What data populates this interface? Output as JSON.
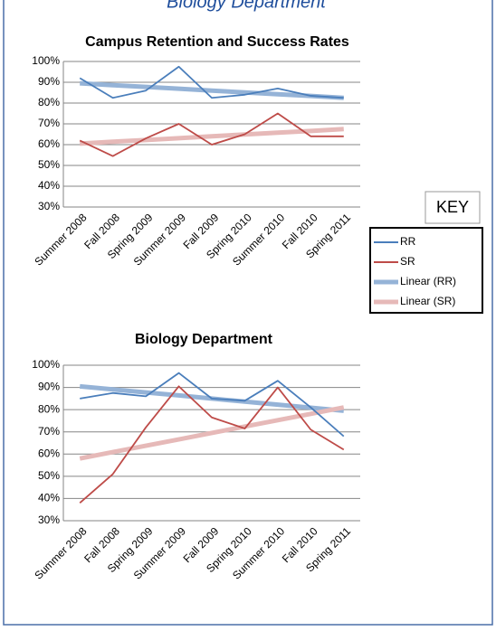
{
  "page_title": "Biology Department",
  "key": {
    "title": "KEY"
  },
  "chart_data": [
    {
      "type": "line",
      "title": "Campus Retention and Success Rates",
      "categories": [
        "Summer 2008",
        "Fall 2008",
        "Spring 2009",
        "Summer 2009",
        "Fall 2009",
        "Spring 2010",
        "Summer 2010",
        "Fall 2010",
        "Spring 2011"
      ],
      "ylim": [
        30,
        100
      ],
      "yticks": [
        {
          "value": 30,
          "label": "30%"
        },
        {
          "value": 40,
          "label": "40%"
        },
        {
          "value": 50,
          "label": "50%"
        },
        {
          "value": 60,
          "label": "60%"
        },
        {
          "value": 70,
          "label": "70%"
        },
        {
          "value": 80,
          "label": "80%"
        },
        {
          "value": 90,
          "label": "90%"
        },
        {
          "value": 100,
          "label": "100%"
        }
      ],
      "grid": true,
      "series": [
        {
          "name": "RR",
          "color": "#4a7ebb",
          "values": [
            92,
            82.5,
            86,
            97.5,
            82.5,
            84,
            87,
            83.5,
            82.5
          ]
        },
        {
          "name": "SR",
          "color": "#be4b48",
          "values": [
            62,
            54.5,
            63,
            70,
            60,
            65,
            75,
            64,
            64
          ]
        },
        {
          "name": "Linear (RR)",
          "color": "#95b3d7",
          "trendline": true,
          "values": [
            89.5,
            88.6,
            87.75,
            86.9,
            86,
            85.1,
            84.25,
            83.4,
            82.5
          ]
        },
        {
          "name": "Linear (SR)",
          "color": "#e6b9b8",
          "trendline": true,
          "values": [
            60.5,
            61.4,
            62.25,
            63.1,
            64,
            64.9,
            65.75,
            66.6,
            67.5
          ]
        }
      ]
    },
    {
      "type": "line",
      "title": "Biology Department",
      "categories": [
        "Summer 2008",
        "Fall 2008",
        "Spring 2009",
        "Summer 2009",
        "Fall 2009",
        "Spring 2010",
        "Summer 2010",
        "Fall 2010",
        "Spring 2011"
      ],
      "ylim": [
        30,
        100
      ],
      "yticks": [
        {
          "value": 30,
          "label": "30%"
        },
        {
          "value": 40,
          "label": "40%"
        },
        {
          "value": 50,
          "label": "50%"
        },
        {
          "value": 60,
          "label": "60%"
        },
        {
          "value": 70,
          "label": "70%"
        },
        {
          "value": 80,
          "label": "80%"
        },
        {
          "value": 90,
          "label": "90%"
        },
        {
          "value": 100,
          "label": "100%"
        }
      ],
      "grid": true,
      "series": [
        {
          "name": "RR",
          "color": "#4a7ebb",
          "values": [
            85,
            87.5,
            86,
            96.5,
            85,
            84,
            93,
            81,
            68
          ]
        },
        {
          "name": "SR",
          "color": "#be4b48",
          "values": [
            38,
            51,
            72,
            90.5,
            76.5,
            71.5,
            90,
            71,
            62
          ]
        },
        {
          "name": "Linear (RR)",
          "color": "#95b3d7",
          "trendline": true,
          "values": [
            90.5,
            89.1,
            87.75,
            86.4,
            85,
            83.6,
            82.25,
            80.9,
            79.5
          ]
        },
        {
          "name": "Linear (SR)",
          "color": "#e6b9b8",
          "trendline": true,
          "values": [
            58,
            60.9,
            63.75,
            66.6,
            69.5,
            72.4,
            75.25,
            78.1,
            81
          ]
        }
      ]
    }
  ]
}
